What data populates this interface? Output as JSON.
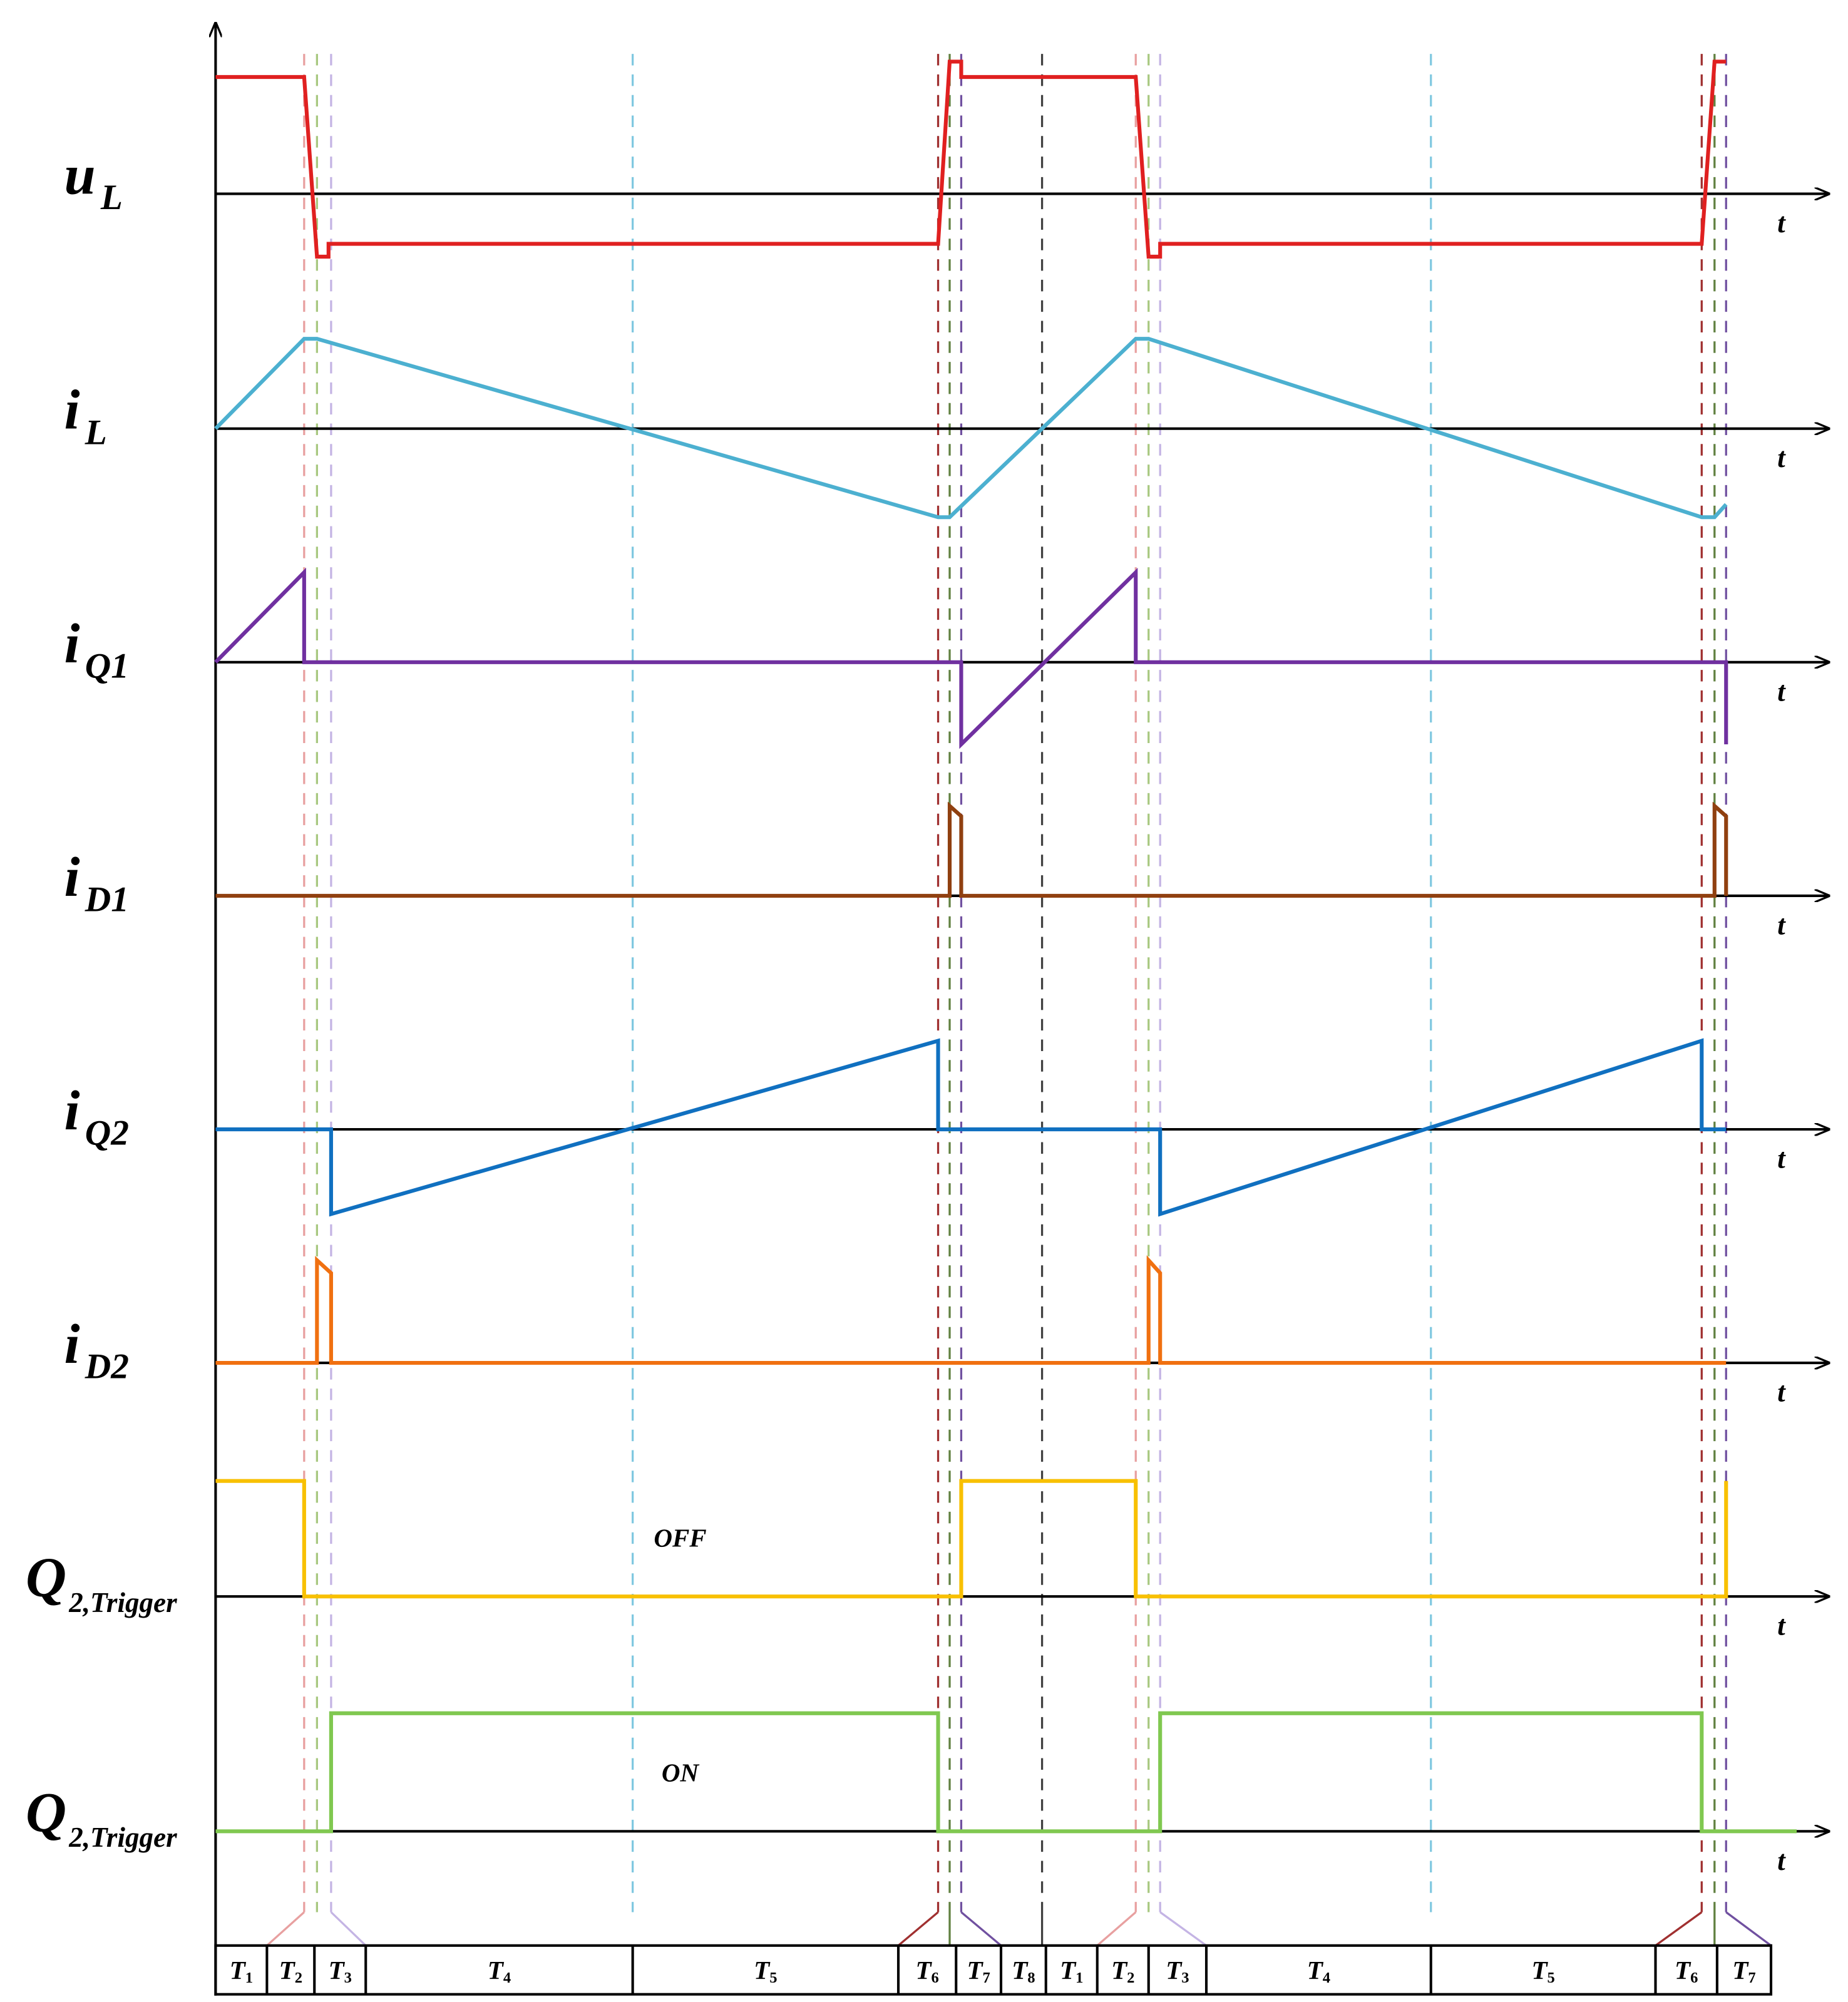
{
  "traces": [
    {
      "label": "u",
      "sub": "L"
    },
    {
      "label": "i",
      "sub": "L"
    },
    {
      "label": "i",
      "sub": "Q1"
    },
    {
      "label": "i",
      "sub": "D1"
    },
    {
      "label": "i",
      "sub": "Q2"
    },
    {
      "label": "i",
      "sub": "D2"
    },
    {
      "label": "Q",
      "sub": "2,Trigger"
    },
    {
      "label": "Q",
      "sub": "2,Trigger"
    }
  ],
  "time_axis_label": "t",
  "state_labels": [
    "OFF",
    "ON"
  ],
  "intervals": [
    {
      "label": "T",
      "sub": "1"
    },
    {
      "label": "T",
      "sub": "2"
    },
    {
      "label": "T",
      "sub": "3"
    },
    {
      "label": "T",
      "sub": "4"
    },
    {
      "label": "T",
      "sub": "5"
    },
    {
      "label": "T",
      "sub": "6"
    },
    {
      "label": "T",
      "sub": "7"
    },
    {
      "label": "T",
      "sub": "8"
    },
    {
      "label": "T",
      "sub": "1"
    },
    {
      "label": "T",
      "sub": "2"
    },
    {
      "label": "T",
      "sub": "3"
    },
    {
      "label": "T",
      "sub": "4"
    },
    {
      "label": "T",
      "sub": "5"
    },
    {
      "label": "T",
      "sub": "6"
    },
    {
      "label": "T",
      "sub": "7"
    }
  ]
}
